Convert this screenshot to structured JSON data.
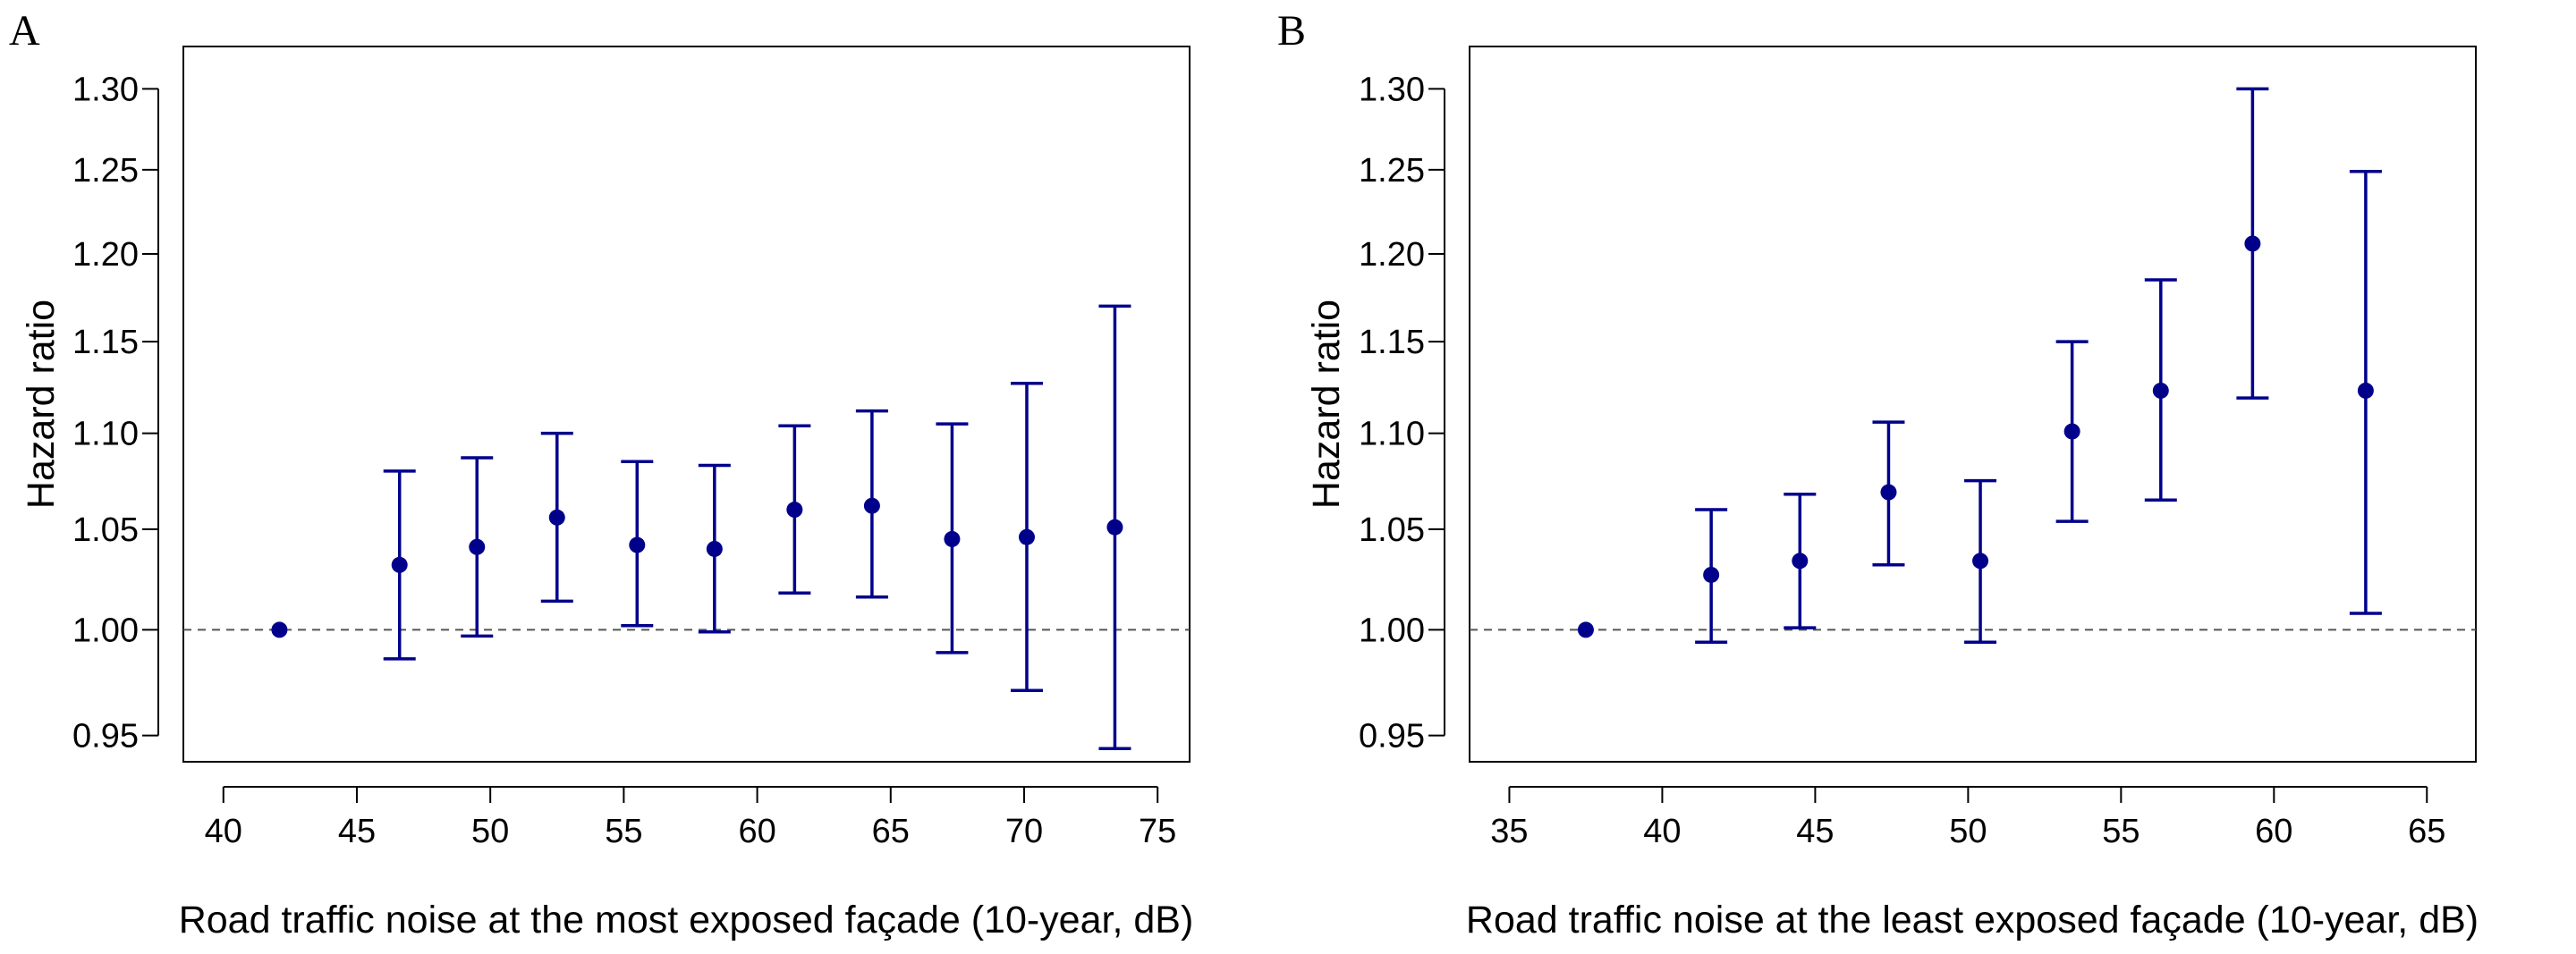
{
  "chart_data": [
    {
      "panel_label": "A",
      "type": "scatter",
      "xlabel": "Road traffic noise at the most exposed façade (10-year, dB)",
      "ylabel": "Hazard ratio",
      "xlim": [
        38.5,
        76.2
      ],
      "ylim": [
        0.938,
        1.327
      ],
      "x_ticks": [
        "40",
        "45",
        "50",
        "55",
        "60",
        "65",
        "70",
        "75"
      ],
      "y_ticks": [
        "0.95",
        "1.00",
        "1.05",
        "1.10",
        "1.15",
        "1.20",
        "1.25",
        "1.30"
      ],
      "y_log_scale": true,
      "reference_line": 1.0,
      "color": "#00008B",
      "points": [
        {
          "x": 42.1,
          "hr": 1.0,
          "lower": 1.0,
          "upper": 1.0
        },
        {
          "x": 46.6,
          "hr": 1.032,
          "lower": 0.986,
          "upper": 1.08
        },
        {
          "x": 49.5,
          "hr": 1.041,
          "lower": 0.997,
          "upper": 1.087
        },
        {
          "x": 52.5,
          "hr": 1.056,
          "lower": 1.014,
          "upper": 1.1
        },
        {
          "x": 55.5,
          "hr": 1.042,
          "lower": 1.002,
          "upper": 1.085
        },
        {
          "x": 58.4,
          "hr": 1.04,
          "lower": 0.999,
          "upper": 1.083
        },
        {
          "x": 61.4,
          "hr": 1.06,
          "lower": 1.018,
          "upper": 1.104
        },
        {
          "x": 64.3,
          "hr": 1.062,
          "lower": 1.016,
          "upper": 1.112
        },
        {
          "x": 67.3,
          "hr": 1.045,
          "lower": 0.989,
          "upper": 1.105
        },
        {
          "x": 70.1,
          "hr": 1.046,
          "lower": 0.971,
          "upper": 1.127
        },
        {
          "x": 73.4,
          "hr": 1.051,
          "lower": 0.944,
          "upper": 1.17
        }
      ]
    },
    {
      "panel_label": "B",
      "type": "scatter",
      "xlabel": "Road traffic noise at the least exposed façade (10-year, dB)",
      "ylabel": "Hazard ratio",
      "xlim": [
        33.7,
        66.6
      ],
      "ylim": [
        0.938,
        1.327
      ],
      "x_ticks": [
        "35",
        "40",
        "45",
        "50",
        "55",
        "60",
        "65"
      ],
      "y_ticks": [
        "0.95",
        "1.00",
        "1.05",
        "1.10",
        "1.15",
        "1.20",
        "1.25",
        "1.30"
      ],
      "y_log_scale": true,
      "reference_line": 1.0,
      "color": "#00008B",
      "points": [
        {
          "x": 37.5,
          "hr": 1.0,
          "lower": 1.0,
          "upper": 1.0
        },
        {
          "x": 41.6,
          "hr": 1.027,
          "lower": 0.994,
          "upper": 1.06
        },
        {
          "x": 44.5,
          "hr": 1.034,
          "lower": 1.001,
          "upper": 1.068
        },
        {
          "x": 47.4,
          "hr": 1.069,
          "lower": 1.032,
          "upper": 1.106
        },
        {
          "x": 50.4,
          "hr": 1.034,
          "lower": 0.994,
          "upper": 1.075
        },
        {
          "x": 53.4,
          "hr": 1.101,
          "lower": 1.054,
          "upper": 1.15
        },
        {
          "x": 56.3,
          "hr": 1.123,
          "lower": 1.065,
          "upper": 1.185
        },
        {
          "x": 59.3,
          "hr": 1.206,
          "lower": 1.119,
          "upper": 1.3
        },
        {
          "x": 63.0,
          "hr": 1.123,
          "lower": 1.008,
          "upper": 1.249
        }
      ]
    }
  ]
}
